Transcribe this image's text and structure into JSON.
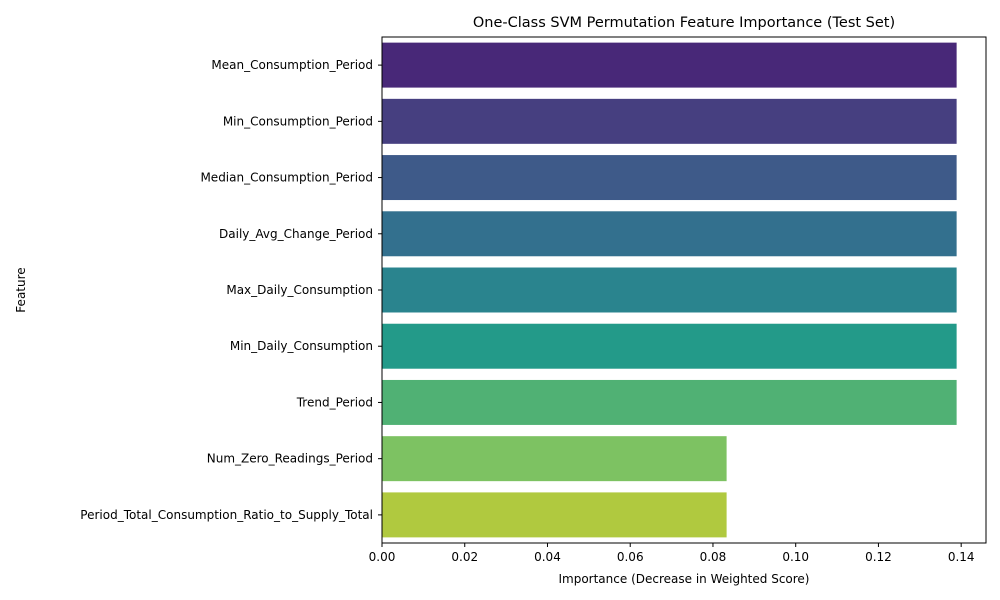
{
  "chart_data": {
    "type": "bar",
    "orientation": "horizontal",
    "title": "One-Class SVM Permutation Feature Importance (Test Set)",
    "xlabel": "Importance (Decrease in Weighted Score)",
    "ylabel": "Feature",
    "xlim": [
      0,
      0.146
    ],
    "xticks": [
      0.0,
      0.02,
      0.04,
      0.06,
      0.08,
      0.1,
      0.12,
      0.14
    ],
    "xtick_labels": [
      "0.00",
      "0.02",
      "0.04",
      "0.06",
      "0.08",
      "0.10",
      "0.12",
      "0.14"
    ],
    "categories": [
      "Mean_Consumption_Period",
      "Min_Consumption_Period",
      "Median_Consumption_Period",
      "Daily_Avg_Change_Period",
      "Max_Daily_Consumption",
      "Min_Daily_Consumption",
      "Trend_Period",
      "Num_Zero_Readings_Period",
      "Period_Total_Consumption_Ratio_to_Supply_Total"
    ],
    "values": [
      0.1389,
      0.1389,
      0.1389,
      0.1389,
      0.1389,
      0.1389,
      0.1389,
      0.0833,
      0.0833
    ],
    "colors": [
      "#482878",
      "#463f80",
      "#3e5a89",
      "#33708e",
      "#2a848e",
      "#239a89",
      "#50b174",
      "#7dc262",
      "#b0c93f"
    ],
    "grid": false,
    "legend": "none"
  }
}
